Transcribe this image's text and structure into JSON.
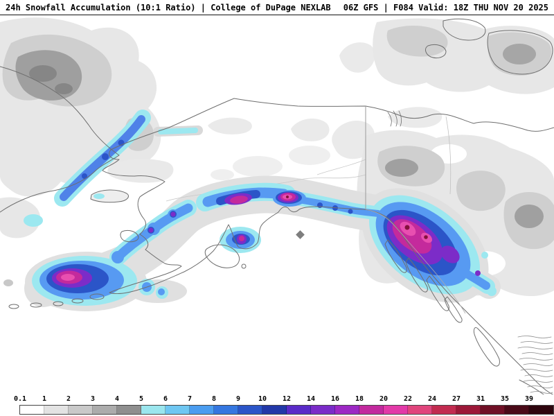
{
  "header": {
    "left_title": "24h Snowfall Accumulation (10:1 Ratio) | College of DuPage NEXLAB",
    "right_title": "06Z GFS | F084 Valid: 18Z THU NOV 20 2025"
  },
  "legend": {
    "tick_labels": [
      "0.1",
      "1",
      "2",
      "3",
      "4",
      "5",
      "6",
      "7",
      "8",
      "9",
      "10",
      "12",
      "14",
      "16",
      "18",
      "20",
      "22",
      "24",
      "27",
      "31",
      "35",
      "39"
    ],
    "segment_colors": [
      "#ffffff",
      "#e3e3e3",
      "#c9c9c9",
      "#acacac",
      "#8f8f8f",
      "#9be6ee",
      "#6fc7f2",
      "#4b9df0",
      "#3577e0",
      "#2b55c8",
      "#2238a8",
      "#5a2bc8",
      "#7a2bc8",
      "#9c28c4",
      "#c2299e",
      "#e23aa8",
      "#e0457c",
      "#c22b50",
      "#9c1838",
      "#701026",
      "#4a0a18",
      "#2e050e"
    ]
  }
}
